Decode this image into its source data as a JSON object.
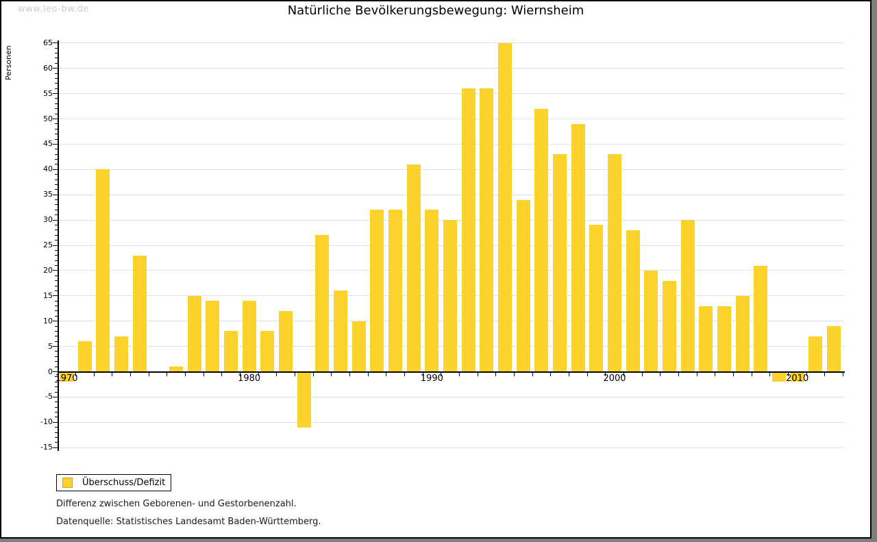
{
  "watermark": "www.leo-bw.de",
  "header": {
    "title": "Natürliche Bevölkerungsbewegung: Wiernsheim"
  },
  "legend": {
    "label": "Überschuss/Defizit"
  },
  "footnotes": [
    "Differenz zwischen Geborenen- und Gestorbenenzahl.",
    "Datenquelle: Statistisches Landesamt Baden-Württemberg."
  ],
  "colors": {
    "bar": "#fcd22b",
    "bar_border": "#c9a227",
    "gridline": "#e0e0e0",
    "axis": "#000000",
    "watermark": "#cccccc",
    "frame_shadow": "#7f7f7f"
  },
  "chart_data": {
    "type": "bar",
    "title": "Natürliche Bevölkerungsbewegung: Wiernsheim",
    "xlabel": "",
    "ylabel": "Personen",
    "ylim": [
      -15,
      65
    ],
    "y_tick_step": 5,
    "y_minor_tick_step": 1,
    "grid": true,
    "legend_position": "bottom-left",
    "series_name": "Überschuss/Defizit",
    "x_tick_labels": [
      1970,
      1980,
      1990,
      2000,
      2010
    ],
    "years": [
      1970,
      1971,
      1972,
      1973,
      1974,
      1975,
      1976,
      1977,
      1978,
      1979,
      1980,
      1981,
      1982,
      1983,
      1984,
      1985,
      1986,
      1987,
      1988,
      1989,
      1990,
      1991,
      1992,
      1993,
      1994,
      1995,
      1996,
      1997,
      1998,
      1999,
      2000,
      2001,
      2002,
      2003,
      2004,
      2005,
      2006,
      2007,
      2008,
      2009,
      2010,
      2011,
      2012
    ],
    "values": [
      -2,
      6,
      40,
      7,
      23,
      0,
      1,
      15,
      14,
      8,
      14,
      8,
      12,
      -11,
      27,
      16,
      10,
      32,
      32,
      41,
      32,
      30,
      56,
      56,
      65,
      34,
      52,
      43,
      49,
      29,
      43,
      28,
      20,
      18,
      30,
      13,
      13,
      15,
      21,
      -2,
      -2,
      7,
      9
    ]
  }
}
